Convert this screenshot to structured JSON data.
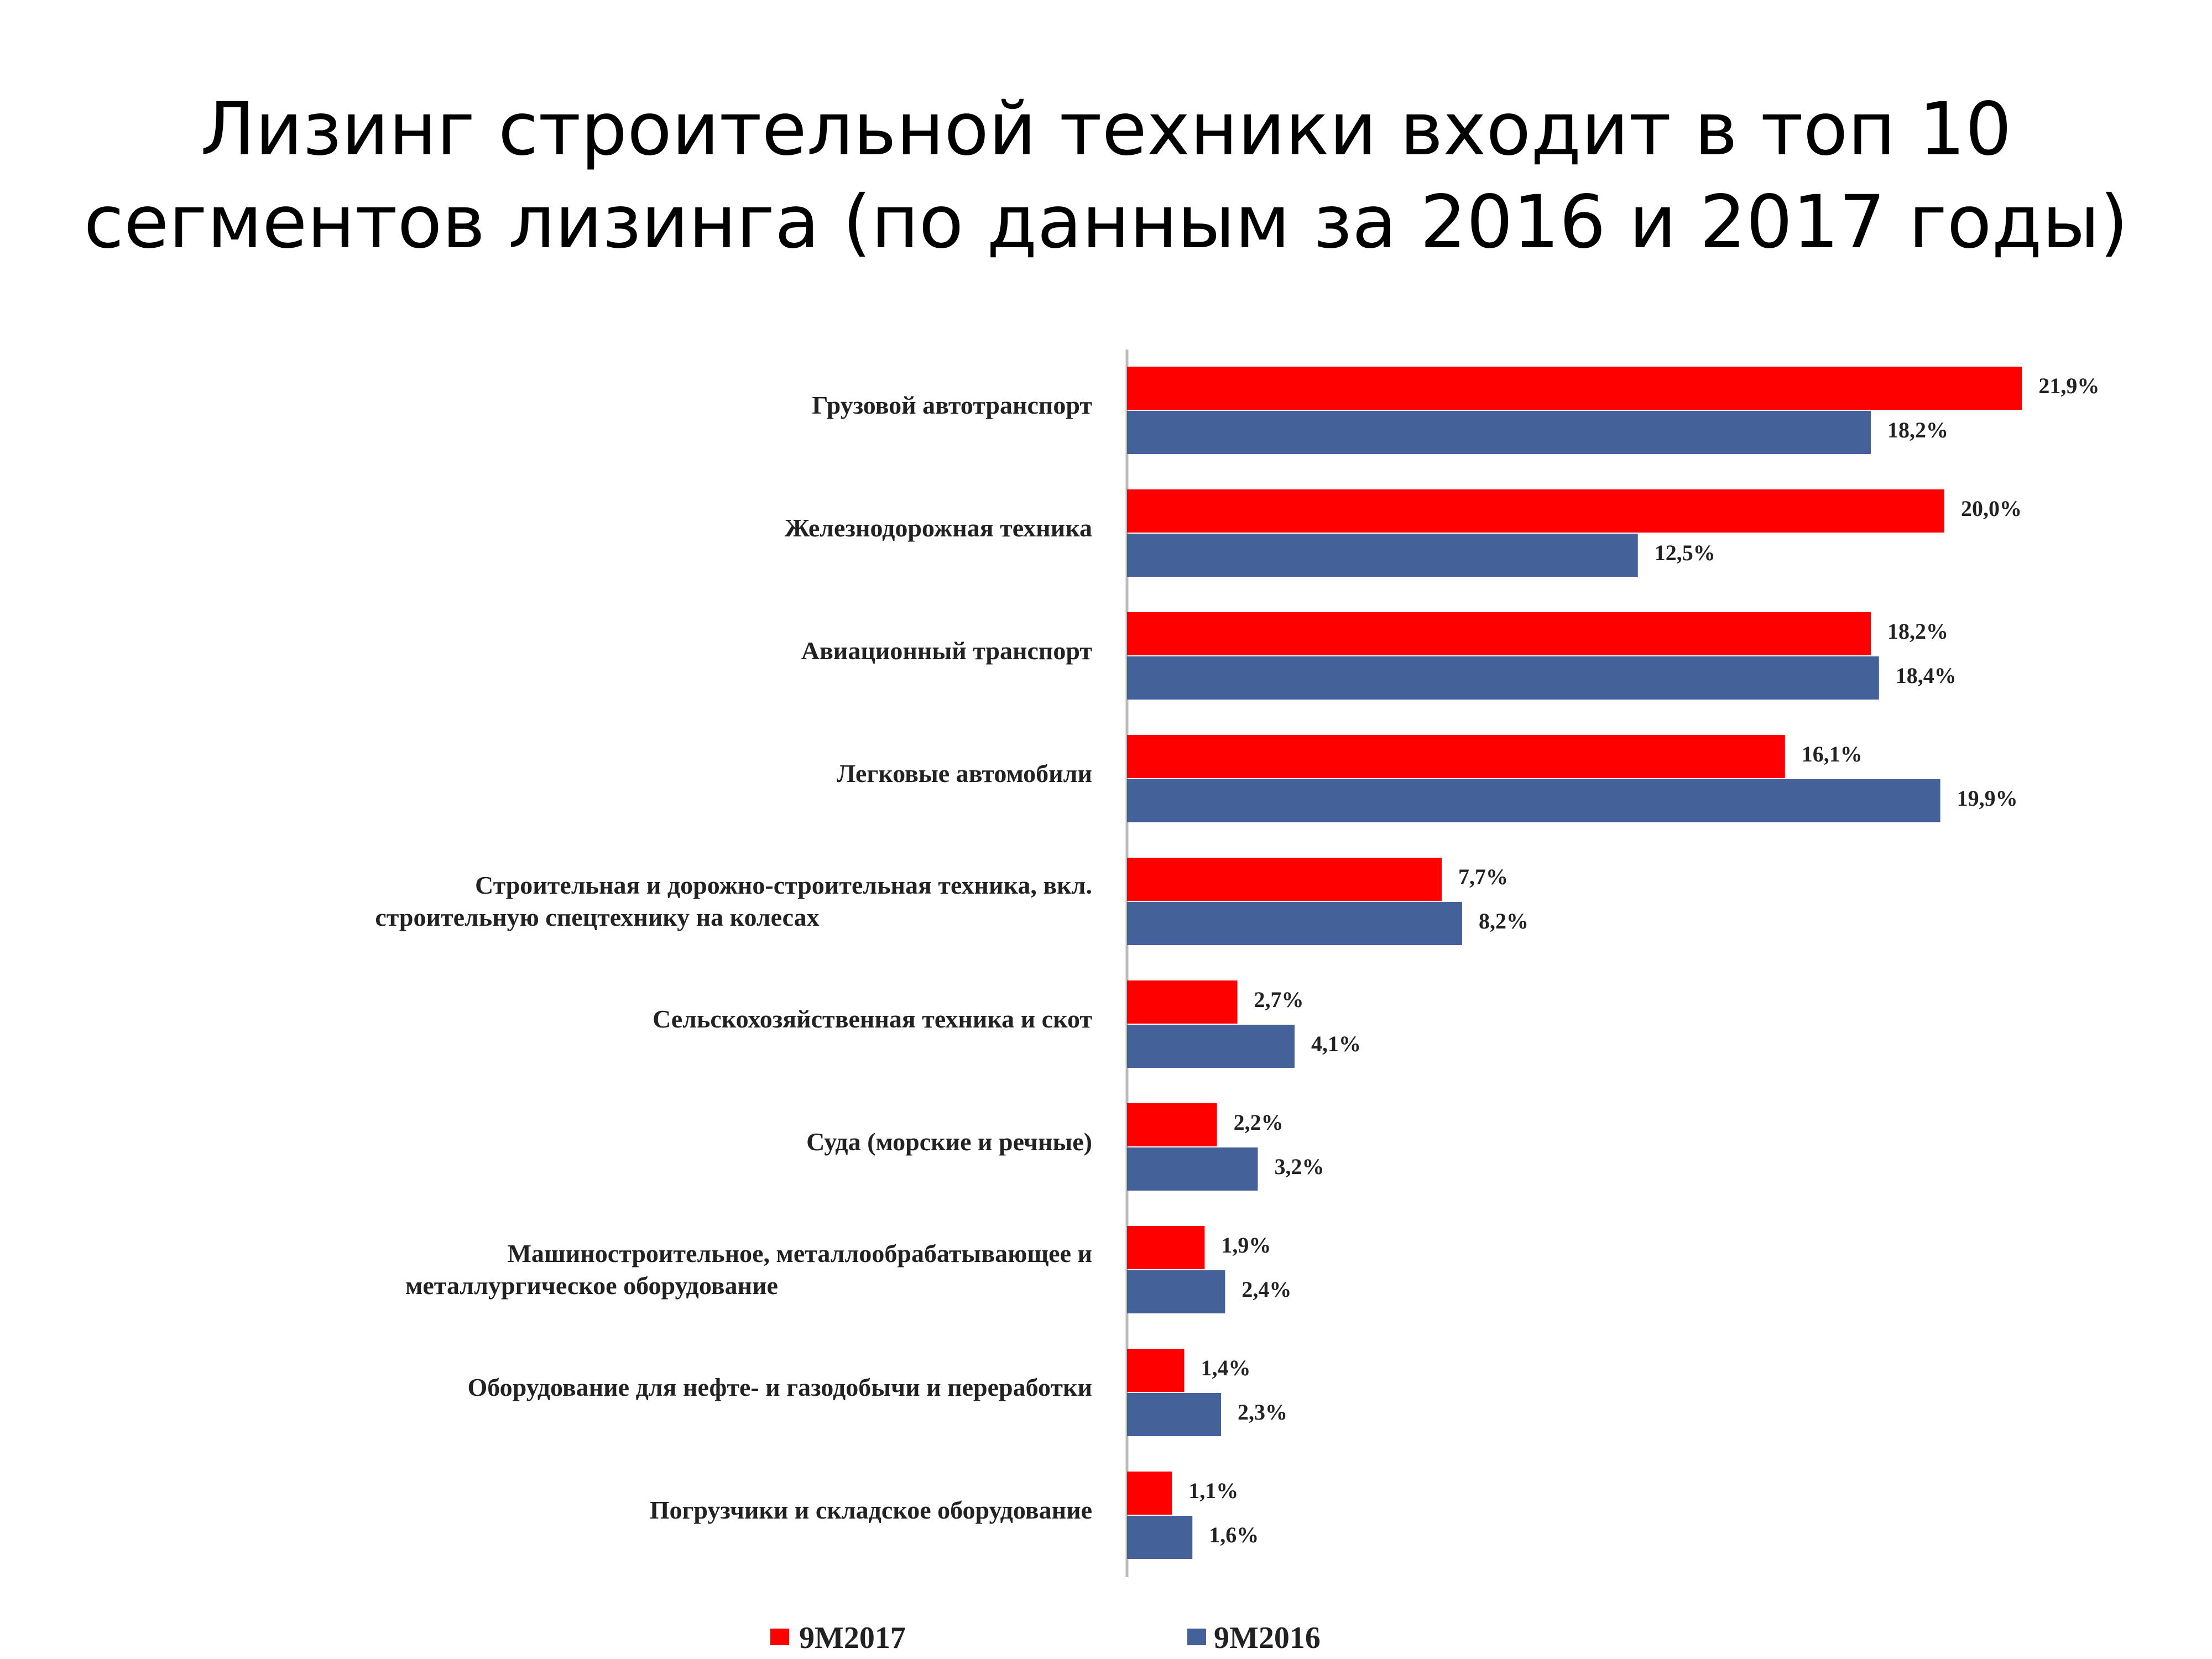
{
  "title_line1": "Лизинг строительной техники входит в топ 10",
  "title_line2": "сегментов лизинга (по данным за 2016 и 2017 годы)",
  "chart_data": {
    "type": "bar",
    "orientation": "horizontal",
    "unit": "%",
    "categories": [
      "Грузовой автотранспорт",
      "Железнодорожная техника",
      "Авиационный транспорт",
      "Легковые автомобили",
      "Строительная и дорожно-строительная техника, вкл.\nстроительную спецтехнику на колесах",
      "Сельскохозяйственная техника и скот",
      "Суда (морские и речные)",
      "Машиностроительное, металлообрабатывающее и\nметаллургическое оборудование",
      "Оборудование для нефте- и газодобычи и переработки",
      "Погрузчики и складское оборудование"
    ],
    "series": [
      {
        "name": "9M2017",
        "color": "#ff0000",
        "values": [
          21.9,
          20.0,
          18.2,
          16.1,
          7.7,
          2.7,
          2.2,
          1.9,
          1.4,
          1.1
        ],
        "labels": [
          "21,9%",
          "20,0%",
          "18,2%",
          "16,1%",
          "7,7%",
          "2,7%",
          "2,2%",
          "1,9%",
          "1,4%",
          "1,1%"
        ]
      },
      {
        "name": "9M2016",
        "color": "#44619a",
        "values": [
          18.2,
          12.5,
          18.4,
          19.9,
          8.2,
          4.1,
          3.2,
          2.4,
          2.3,
          1.6
        ],
        "labels": [
          "18,2%",
          "12,5%",
          "18,4%",
          "19,9%",
          "8,2%",
          "4,1%",
          "3,2%",
          "2,4%",
          "2,3%",
          "1,6%"
        ]
      }
    ],
    "xlim": [
      0,
      22
    ],
    "grid": false,
    "legend_position": "bottom"
  }
}
